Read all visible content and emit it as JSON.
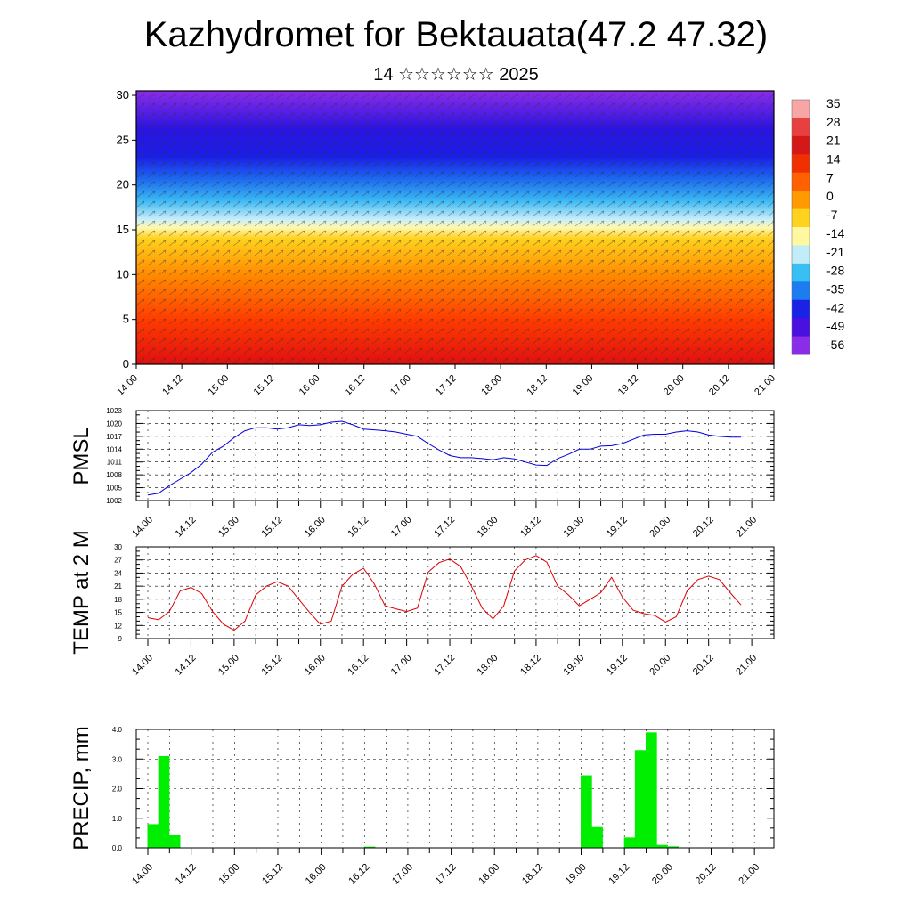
{
  "header": {
    "title": "Kazhydromet for Bektauata(47.2 47.32)",
    "subtitle": "14 ☆☆☆☆☆☆ 2025"
  },
  "colors": {
    "pmsl": "#0000dd",
    "temp": "#dd0000",
    "precip": "#00ee00"
  },
  "chart_data": [
    {
      "type": "heatmap",
      "name_hint": "vertical cross-section",
      "y_ticks": [
        "0",
        "5",
        "10",
        "15",
        "20",
        "25",
        "30"
      ],
      "ylim": [
        0,
        30.5
      ],
      "x_ticks": [
        "14.00",
        "14.12",
        "15.00",
        "15.12",
        "16.00",
        "16.12",
        "17.00",
        "17.12",
        "18.00",
        "18.12",
        "19.00",
        "19.12",
        "20.00",
        "20.12",
        "21.00"
      ],
      "colorbar_labels": [
        "35",
        "28",
        "21",
        "14",
        "7",
        "0",
        "-7",
        "-14",
        "-21",
        "-28",
        "-35",
        "-42",
        "-49",
        "-56"
      ],
      "colorbar_colors": [
        "#f7a5a5",
        "#e84040",
        "#d41818",
        "#f03000",
        "#ff6000",
        "#ff9a00",
        "#ffd21e",
        "#fff8a0",
        "#c2ecf8",
        "#38c0f4",
        "#1d7cf0",
        "#1a22e6",
        "#4a10e0",
        "#8b2ce8"
      ]
    },
    {
      "type": "line",
      "ylabel": "PMSL",
      "y_ticks": [
        "1002",
        "1005",
        "1008",
        "1011",
        "1014",
        "1017",
        "1020",
        "1023"
      ],
      "ylim": [
        1002,
        1023
      ],
      "x_ticks": [
        "14.00",
        "14.12",
        "15.00",
        "15.12",
        "16.00",
        "16.12",
        "17.00",
        "17.12",
        "18.00",
        "18.12",
        "19.00",
        "19.12",
        "20.00",
        "20.12",
        "21.00"
      ],
      "x": [
        0,
        3,
        6,
        9,
        12,
        15,
        18,
        21,
        24,
        27,
        30,
        33,
        36,
        39,
        42,
        45,
        48,
        51,
        54,
        57,
        60,
        63,
        66,
        69,
        72,
        75,
        78,
        81,
        84,
        87,
        90,
        93,
        96,
        99,
        102,
        105,
        108,
        111,
        114,
        117,
        120,
        123,
        126,
        129,
        132,
        135,
        138,
        141,
        144,
        147,
        150,
        153,
        156,
        159,
        162,
        165
      ],
      "values": [
        1003.3,
        1003.7,
        1005.5,
        1007.0,
        1008.5,
        1010.5,
        1013.3,
        1014.7,
        1016.7,
        1018.3,
        1019.0,
        1019.0,
        1018.7,
        1019.0,
        1019.7,
        1019.5,
        1019.7,
        1020.3,
        1020.5,
        1019.7,
        1018.7,
        1018.5,
        1018.3,
        1018.0,
        1017.5,
        1017.0,
        1015.3,
        1013.8,
        1012.5,
        1012.0,
        1012.0,
        1011.8,
        1011.5,
        1012.0,
        1011.7,
        1011.0,
        1010.3,
        1010.2,
        1011.8,
        1012.8,
        1014.0,
        1014.0,
        1014.7,
        1014.8,
        1015.3,
        1016.3,
        1017.3,
        1017.5,
        1017.5,
        1018.0,
        1018.3,
        1018.0,
        1017.3,
        1017.0,
        1016.8,
        1016.8
      ]
    },
    {
      "type": "line",
      "ylabel": "TEMP at 2 M",
      "y_ticks": [
        "9",
        "12",
        "15",
        "18",
        "21",
        "24",
        "27",
        "30"
      ],
      "ylim": [
        9,
        30
      ],
      "x_ticks": [
        "14.00",
        "14.12",
        "15.00",
        "15.12",
        "16.00",
        "16.12",
        "17.00",
        "17.12",
        "18.00",
        "18.12",
        "19.00",
        "19.12",
        "20.00",
        "20.12",
        "21.00"
      ],
      "x": [
        0,
        3,
        6,
        9,
        12,
        15,
        18,
        21,
        24,
        27,
        30,
        33,
        36,
        39,
        42,
        45,
        48,
        51,
        54,
        57,
        60,
        63,
        66,
        69,
        72,
        75,
        78,
        81,
        84,
        87,
        90,
        93,
        96,
        99,
        102,
        105,
        108,
        111,
        114,
        117,
        120,
        123,
        126,
        129,
        132,
        135,
        138,
        141,
        144,
        147,
        150,
        153,
        156,
        159,
        162,
        165
      ],
      "values": [
        13.8,
        13.3,
        15.2,
        19.9,
        20.7,
        19.3,
        15.2,
        12.3,
        10.9,
        13.0,
        19.0,
        21.0,
        22.0,
        21.0,
        18.0,
        15.0,
        12.3,
        13.0,
        21.0,
        23.7,
        25.1,
        21.5,
        16.5,
        15.8,
        15.2,
        16.0,
        24.2,
        26.4,
        27.2,
        25.5,
        21.0,
        16.0,
        13.5,
        16.5,
        24.5,
        27.0,
        28.0,
        26.5,
        21.0,
        19.0,
        16.5,
        18.0,
        19.5,
        23.0,
        18.5,
        15.5,
        14.7,
        14.3,
        12.8,
        14.0,
        19.9,
        22.5,
        23.3,
        22.5,
        19.5,
        16.7
      ]
    },
    {
      "type": "bar",
      "ylabel": "PRECIP, mm",
      "y_ticks": [
        "0.0",
        "1.0",
        "2.0",
        "3.0",
        "4.0"
      ],
      "ylim": [
        0,
        4
      ],
      "x_ticks": [
        "14.00",
        "14.12",
        "15.00",
        "15.12",
        "16.00",
        "16.12",
        "17.00",
        "17.12",
        "18.00",
        "18.12",
        "19.00",
        "19.12",
        "20.00",
        "20.12",
        "21.00"
      ],
      "x": [
        0,
        3,
        6,
        60,
        120,
        123,
        132,
        135,
        138,
        141,
        144
      ],
      "values": [
        0.8,
        3.1,
        0.45,
        0.04,
        2.45,
        0.7,
        0.35,
        3.3,
        3.9,
        0.1,
        0.05
      ]
    }
  ]
}
